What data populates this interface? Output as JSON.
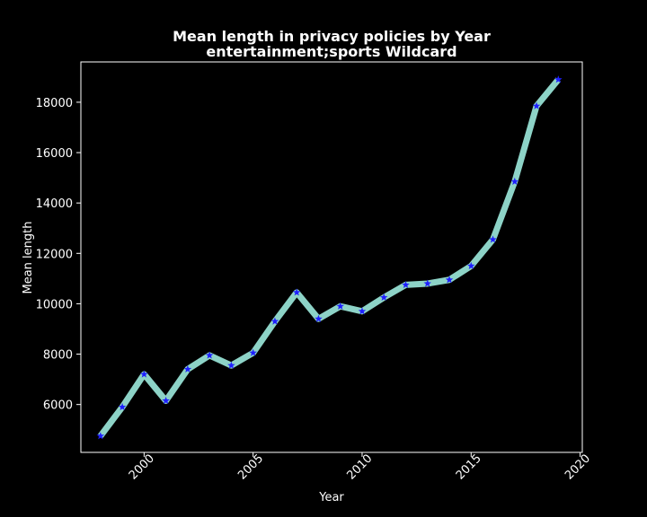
{
  "chart_data": {
    "type": "line",
    "title": "Mean length in privacy policies by Year",
    "subtitle": "entertainment;sports Wildcard",
    "xlabel": "Year",
    "ylabel": "Mean length",
    "xlim": [
      1997.1,
      2020.1
    ],
    "ylim": [
      4100,
      19600
    ],
    "xticks": [
      2000,
      2005,
      2010,
      2015,
      2020
    ],
    "yticks": [
      6000,
      8000,
      10000,
      12000,
      14000,
      16000,
      18000
    ],
    "xtick_labels": [
      "2000",
      "2005",
      "2010",
      "2015",
      "2020"
    ],
    "ytick_labels": [
      "6000",
      "8000",
      "10000",
      "12000",
      "14000",
      "16000",
      "18000"
    ],
    "grid": false,
    "series": [
      {
        "line_color": "#8dd3c7",
        "marker_color": "#1f1fff",
        "marker": "star",
        "x": [
          1998,
          1999,
          2000,
          2001,
          2002,
          2003,
          2004,
          2005,
          2006,
          2007,
          2008,
          2009,
          2010,
          2011,
          2012,
          2013,
          2014,
          2015,
          2016,
          2017,
          2018,
          2019
        ],
        "y": [
          4750,
          5900,
          7200,
          6150,
          7400,
          7950,
          7550,
          8050,
          9300,
          10450,
          9400,
          9900,
          9700,
          10250,
          10750,
          10800,
          10950,
          11500,
          12550,
          14850,
          17850,
          18900
        ]
      }
    ]
  }
}
